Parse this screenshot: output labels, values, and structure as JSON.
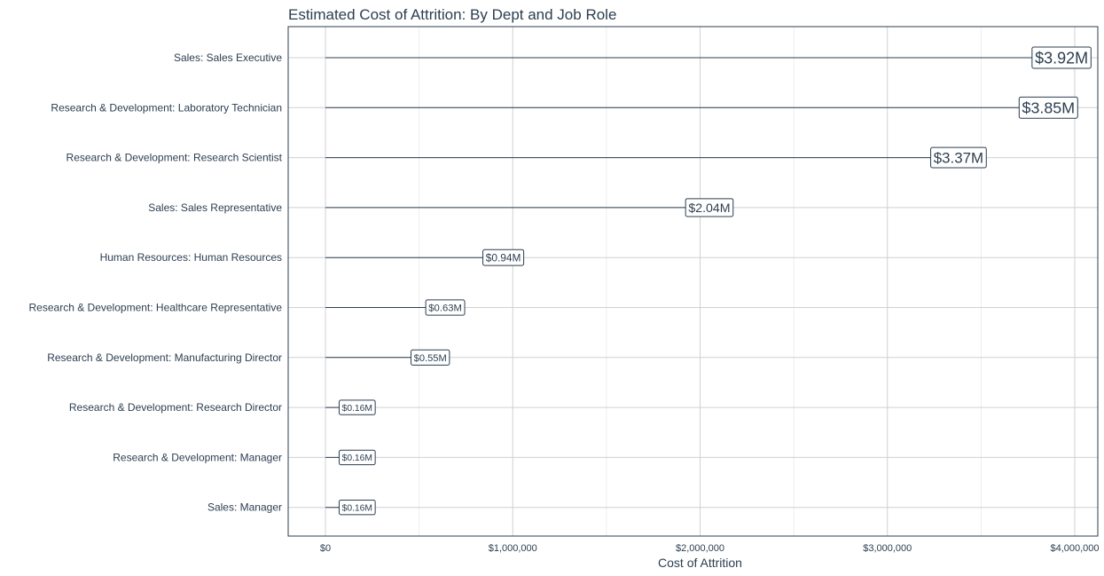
{
  "chart_data": {
    "type": "lollipop",
    "title": "Estimated Cost of Attrition: By Dept and Job Role",
    "xlabel": "Cost of Attrition",
    "ylabel": "",
    "xlim": [
      0,
      4000000
    ],
    "x_ticks": [
      0,
      1000000,
      2000000,
      3000000,
      4000000
    ],
    "x_tick_labels": [
      "$0",
      "$1,000,000",
      "$2,000,000",
      "$3,000,000",
      "$4,000,000"
    ],
    "grid": true,
    "categories": [
      "Sales: Sales Executive",
      "Research & Development: Laboratory Technician",
      "Research & Development: Research Scientist",
      "Sales: Sales Representative",
      "Human Resources: Human Resources",
      "Research & Development: Healthcare Representative",
      "Research & Development: Manufacturing Director",
      "Research & Development: Research Director",
      "Research & Development: Manager",
      "Sales: Manager"
    ],
    "values": [
      3920000,
      3850000,
      3370000,
      2040000,
      940000,
      630000,
      550000,
      160000,
      160000,
      160000
    ],
    "data_labels": [
      "$3.92M",
      "$3.85M",
      "$3.37M",
      "$2.04M",
      "$0.94M",
      "$0.63M",
      "$0.55M",
      "$0.16M",
      "$0.16M",
      "$0.16M"
    ],
    "color": "#2c3e50"
  }
}
